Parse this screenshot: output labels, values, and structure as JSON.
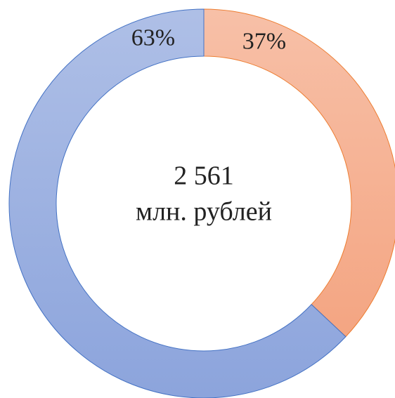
{
  "chart_data": {
    "type": "donut",
    "values": [
      37,
      63
    ],
    "value_labels": [
      "37%",
      "63%"
    ],
    "colors": [
      "#f4a582",
      "#8ca4dc"
    ],
    "edge_colors": [
      "#ed7d31",
      "#4472c4"
    ],
    "annotations": [
      "2 561",
      "млн. рублей"
    ]
  }
}
